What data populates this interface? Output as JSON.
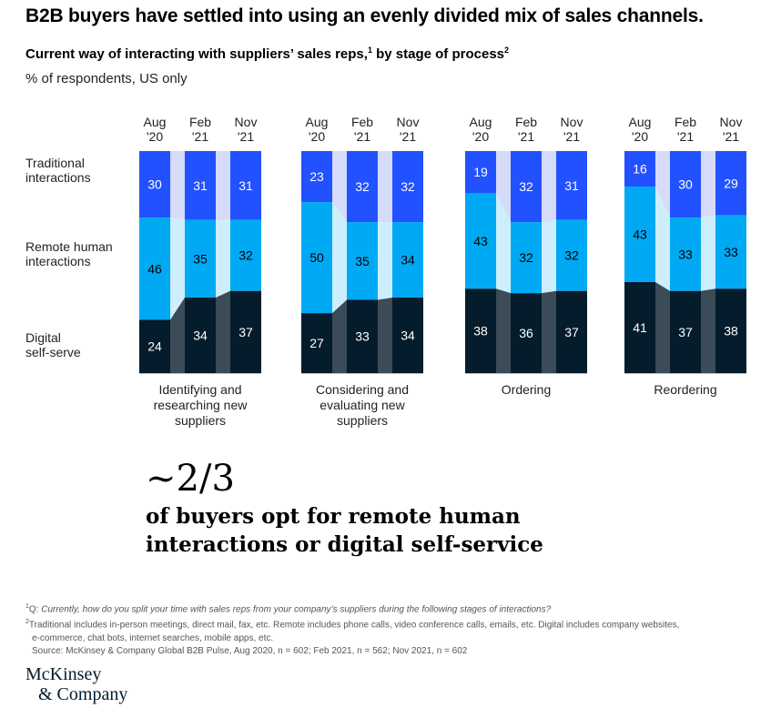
{
  "header": {
    "title": "B2B buyers have settled into using an evenly divided mix of sales channels.",
    "subtitle_main": "Current way of interacting with suppliers’ sales reps,",
    "subtitle_sup1": "1",
    "subtitle_mid": " by stage of process",
    "subtitle_sup2": "2",
    "unit": "% of respondents, US only"
  },
  "chart_data": {
    "type": "bar",
    "stacked": true,
    "title": "Current way of interacting with suppliers’ sales reps, by stage of process",
    "ylabel": "% of respondents, US only",
    "ylim": [
      0,
      100
    ],
    "periods": [
      "Aug\n'20",
      "Feb\n'21",
      "Nov\n'21"
    ],
    "period_lines": [
      [
        "Aug",
        "'20"
      ],
      [
        "Feb",
        "'21"
      ],
      [
        "Nov",
        "'21"
      ]
    ],
    "series": [
      {
        "name": "Traditional interactions",
        "lines": [
          "Traditional",
          "interactions"
        ],
        "color": "#2251ff",
        "connector_color": "#d7dbfa",
        "label_color": "#ffffff"
      },
      {
        "name": "Remote human interactions",
        "lines": [
          "Remote human",
          "interactions"
        ],
        "color": "#00a9f4",
        "connector_color": "#cdeefc",
        "label_color": "#000000"
      },
      {
        "name": "Digital self-serve",
        "lines": [
          "Digital",
          "self-serve"
        ],
        "color": "#051c2c",
        "connector_color": "#3b4b58",
        "label_color": "#ffffff"
      }
    ],
    "groups": [
      {
        "name": "Identifying and researching new suppliers",
        "lines": [
          "Identifying and",
          "researching new",
          "suppliers"
        ],
        "values": {
          "Traditional interactions": [
            30,
            31,
            31
          ],
          "Remote human interactions": [
            46,
            35,
            32
          ],
          "Digital self-serve": [
            24,
            34,
            37
          ]
        }
      },
      {
        "name": "Considering and evaluating new suppliers",
        "lines": [
          "Considering and",
          "evaluating new",
          "suppliers"
        ],
        "values": {
          "Traditional interactions": [
            23,
            32,
            32
          ],
          "Remote human interactions": [
            50,
            35,
            34
          ],
          "Digital self-serve": [
            27,
            33,
            34
          ]
        }
      },
      {
        "name": "Ordering",
        "lines": [
          "Ordering"
        ],
        "values": {
          "Traditional interactions": [
            19,
            32,
            31
          ],
          "Remote human interactions": [
            43,
            32,
            32
          ],
          "Digital self-serve": [
            38,
            36,
            37
          ]
        }
      },
      {
        "name": "Reordering",
        "lines": [
          "Reordering"
        ],
        "values": {
          "Traditional interactions": [
            16,
            30,
            29
          ],
          "Remote human interactions": [
            43,
            33,
            33
          ],
          "Digital self-serve": [
            41,
            37,
            38
          ]
        }
      }
    ]
  },
  "callout": {
    "figure": "~2/3",
    "text_line1": "of buyers opt for remote human",
    "text_line2": "interactions or digital self-service"
  },
  "footnotes": {
    "n1_sup": "1",
    "n1_prefix": "Q: ",
    "n1_text": "Currently, how do you split your time with sales reps from your company’s suppliers during the following stages of interactions?",
    "n2_sup": "2",
    "n2_text": "Traditional includes in-person meetings, direct mail, fax, etc. Remote includes phone calls, video conference calls, emails, etc. Digital includes company websites,",
    "n2_text_cont": "e-commerce, chat bots, internet searches, mobile apps, etc.",
    "source": "Source: McKinsey & Company Global B2B Pulse, Aug 2020, n = 602; Feb 2021, n = 562; Nov 2021, n = 602"
  },
  "logo": {
    "line1": "McKinsey",
    "line2": "& Company"
  }
}
